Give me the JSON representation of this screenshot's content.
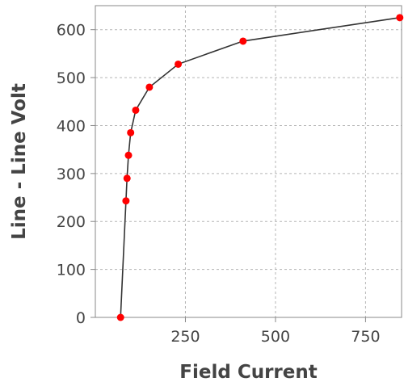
{
  "chart_data": {
    "type": "line",
    "title": "",
    "xlabel": "Field Current",
    "ylabel": "Line - Line Volt",
    "xlim": [
      0,
      850
    ],
    "ylim": [
      0,
      650
    ],
    "xticks": [
      250,
      500,
      750
    ],
    "yticks": [
      0,
      100,
      200,
      300,
      400,
      500,
      600
    ],
    "grid": true,
    "line_color": "#333333",
    "marker_color": "#ff0000",
    "series": [
      {
        "x": [
          70,
          85,
          88,
          92,
          98,
          112,
          150,
          230,
          410,
          845
        ],
        "y": [
          0,
          243,
          290,
          338,
          385,
          432,
          480,
          528,
          576,
          625
        ]
      }
    ]
  }
}
